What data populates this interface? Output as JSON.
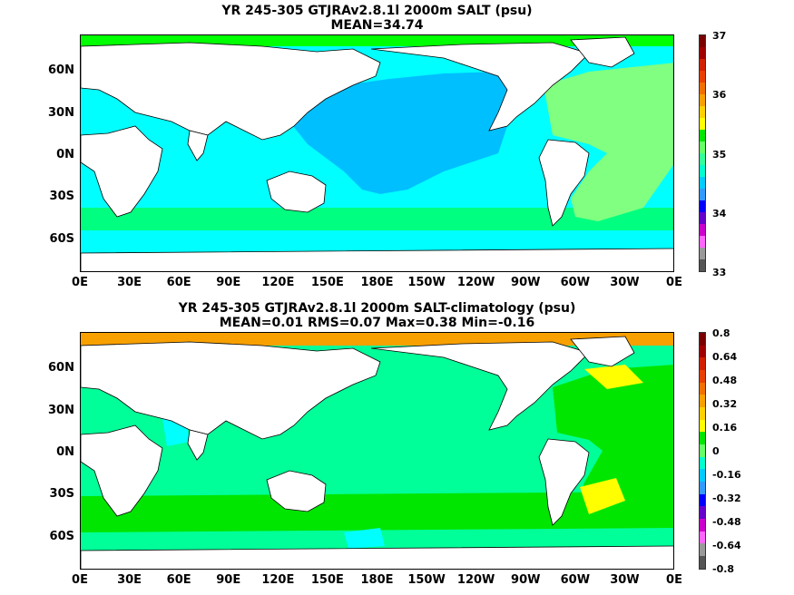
{
  "panel1": {
    "title_line1": "YR 245-305 GTJRAv2.8.1l 2000m SALT (psu)",
    "title_line2": "MEAN=34.74",
    "colorbar": {
      "labels": [
        "37",
        "36",
        "35",
        "34",
        "33"
      ],
      "colors": [
        "#7a0000",
        "#a00000",
        "#d02000",
        "#e84000",
        "#f07000",
        "#f8a000",
        "#ffd000",
        "#ffff00",
        "#00e600",
        "#66ff66",
        "#33ff99",
        "#00ffcc",
        "#00ccff",
        "#3399ff",
        "#0000ff",
        "#6600cc",
        "#cc00cc",
        "#ff66ff",
        "#999999",
        "#555555"
      ]
    },
    "colors": {
      "pacific_core": "#00bfff",
      "ocean_fresh": "#00ffff",
      "south_band": "#00ff80",
      "atlantic": "#80ff80",
      "arctic": "#00ff00",
      "land": "#ffffff"
    }
  },
  "panel2": {
    "title_line1": "YR 245-305 GTJRAv2.8.1l 2000m SALT-climatology (psu)",
    "title_line2": "MEAN=0.01   RMS=0.07   Max=0.38   Min=-0.16",
    "colorbar": {
      "labels": [
        "0.8",
        "0.64",
        "0.48",
        "0.32",
        "0.16",
        "0",
        "-0.16",
        "-0.32",
        "-0.48",
        "-0.64",
        "-0.8"
      ],
      "colors": [
        "#7a0000",
        "#a00000",
        "#d02000",
        "#e84000",
        "#f07000",
        "#f8a000",
        "#ffd000",
        "#ffff00",
        "#00e600",
        "#66ff66",
        "#00ffcc",
        "#00ccff",
        "#3399ff",
        "#0000ff",
        "#6600cc",
        "#cc00cc",
        "#ff66ff",
        "#999999",
        "#555555"
      ]
    },
    "colors": {
      "ocean_base": "#00ff99",
      "atlantic": "#00e600",
      "yellow": "#ffff00",
      "orange": "#f8a000",
      "cyan": "#00ffff",
      "land": "#ffffff"
    }
  },
  "axes": {
    "lat_labels": [
      "60N",
      "30N",
      "0N",
      "30S",
      "60S"
    ],
    "lon_labels": [
      "0E",
      "30E",
      "60E",
      "90E",
      "120E",
      "150E",
      "180E",
      "150W",
      "120W",
      "90W",
      "60W",
      "30W",
      "0E"
    ]
  }
}
